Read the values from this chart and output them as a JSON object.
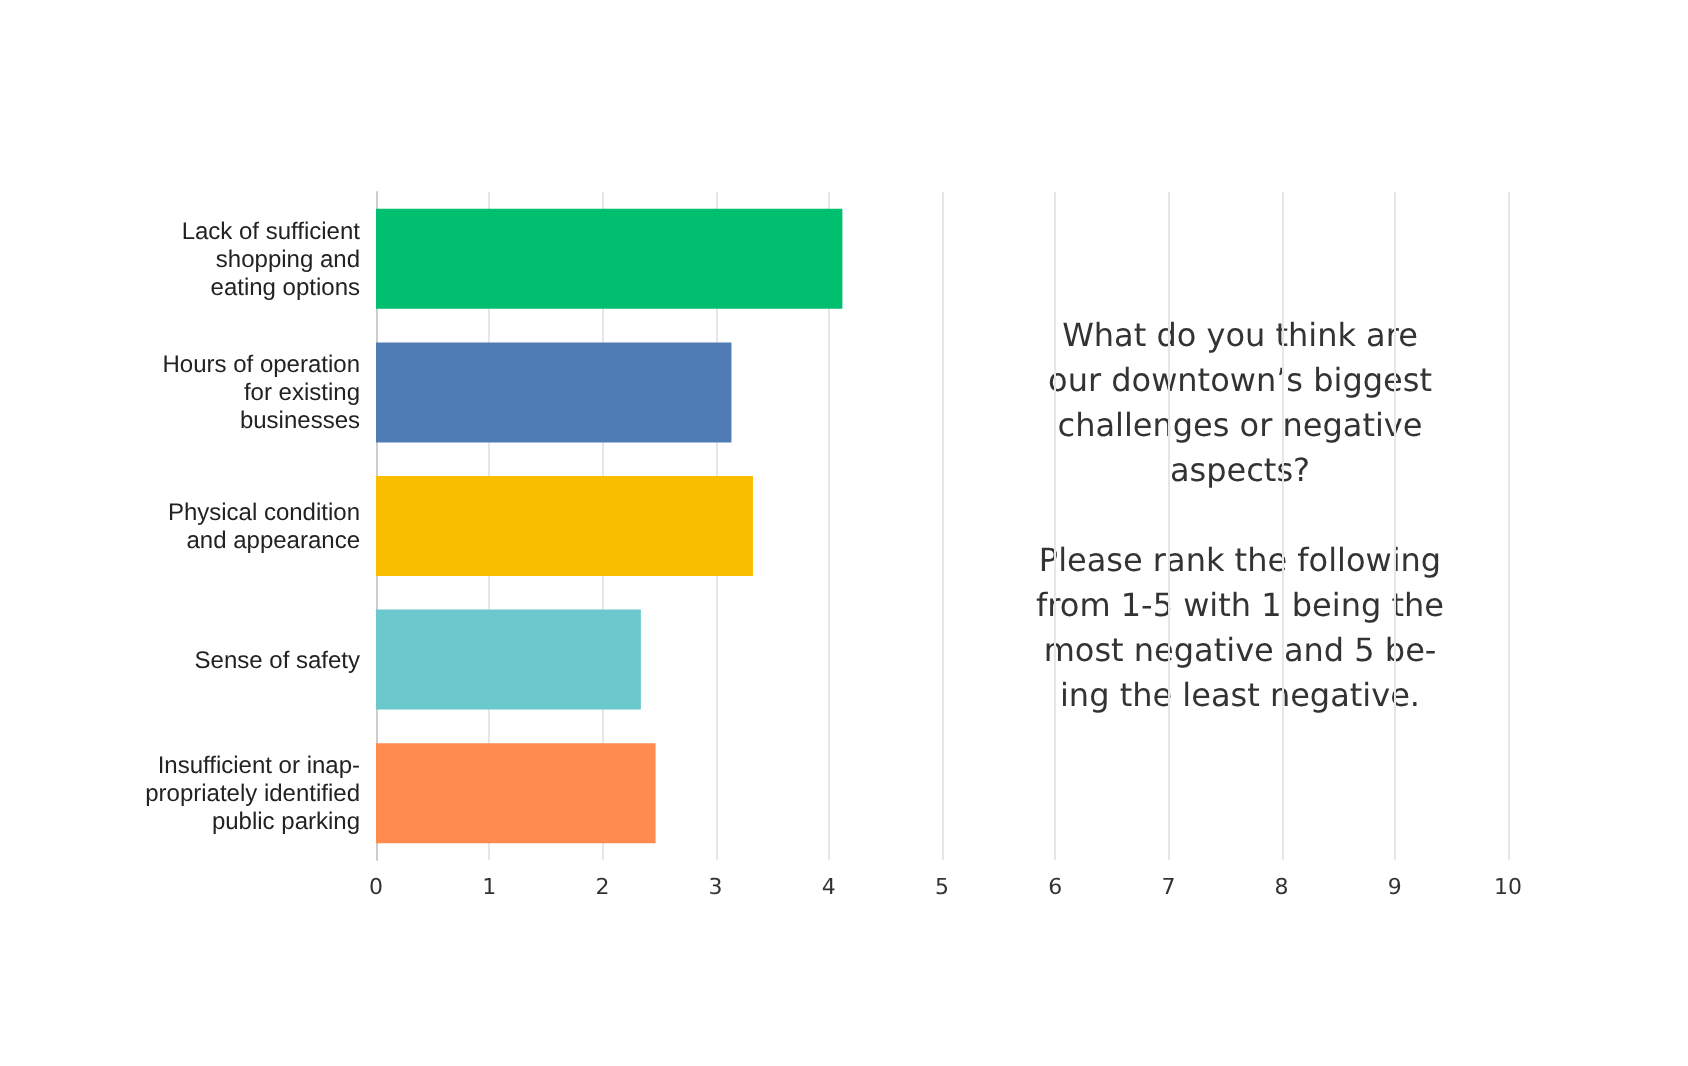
{
  "chart_data": {
    "type": "bar",
    "orientation": "horizontal",
    "categories": [
      "Lack of sufficient\nshopping and\neating options",
      "Hours of operation\nfor existing\nbusinesses",
      "Physical condition\nand appearance",
      "Sense of safety",
      "Insufficient or inap-\npropriately identified\npublic parking"
    ],
    "values": [
      4.12,
      3.14,
      3.33,
      2.34,
      2.47
    ],
    "colors": [
      "#00bf6f",
      "#507cb6",
      "#f9be00",
      "#6bc8cd",
      "#ff8b4f"
    ],
    "xlim": [
      0,
      10
    ],
    "xticks": [
      0,
      1,
      2,
      3,
      4,
      5,
      6,
      7,
      8,
      9,
      10
    ],
    "grid": "x",
    "annotations": [
      "What do you think are\nour downtown’s biggest\nchallenges or negative\naspects?\n\nPlease rank the following\nfrom 1-5 with 1 being the\nmost negative and 5 be-\ning the least negative."
    ]
  }
}
